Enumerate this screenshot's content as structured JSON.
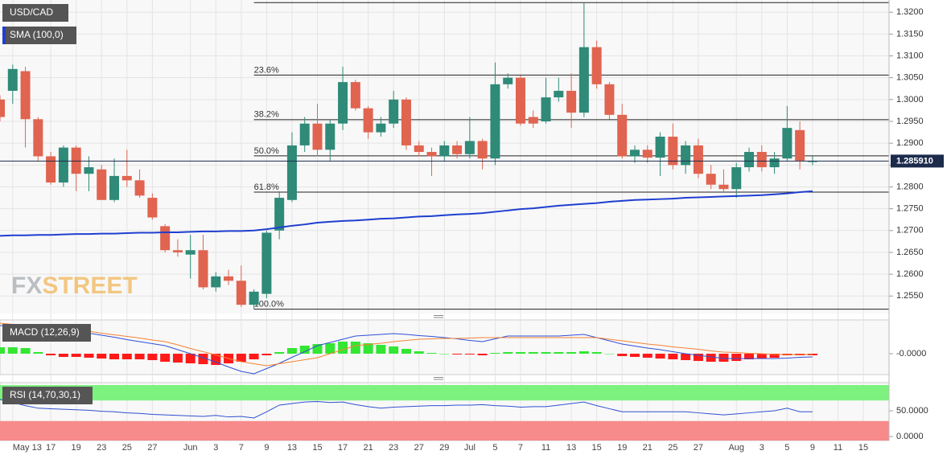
{
  "chart_data": [
    {
      "type": "candlestick",
      "title": "USD/CAD",
      "categories": [
        null,
        "May 13",
        null,
        null,
        "17",
        null,
        "19",
        null,
        "23",
        null,
        "25",
        null,
        "27",
        null,
        null,
        "Jun",
        null,
        "3",
        null,
        "7",
        null,
        "9",
        null,
        "13",
        null,
        "15",
        null,
        "17",
        null,
        "21",
        null,
        "23",
        null,
        "27",
        null,
        "29",
        null,
        "Jul",
        null,
        "5",
        null,
        "7",
        null,
        "11",
        null,
        "13",
        null,
        "15",
        null,
        "19",
        null,
        "21",
        null,
        "25",
        null,
        "27",
        null,
        null,
        "Aug",
        null,
        "3",
        null,
        "5",
        null,
        "9",
        null,
        "11",
        null,
        "15"
      ],
      "open": [
        1.3,
        1.302,
        1.3065,
        1.2955,
        1.287,
        1.281,
        1.289,
        1.283,
        1.284,
        1.277,
        1.2825,
        1.2815,
        1.2775,
        1.271,
        1.2655,
        1.2645,
        1.2655,
        1.257,
        1.2595,
        1.2585,
        1.253,
        1.2555,
        1.27,
        1.277,
        1.2895,
        1.2945,
        1.2885,
        1.2945,
        1.304,
        1.298,
        1.2925,
        1.2945,
        1.3,
        1.2895,
        1.288,
        1.287,
        1.2895,
        1.2875,
        1.2905,
        1.2865,
        1.3035,
        1.305,
        1.296,
        1.295,
        1.3005,
        1.302,
        1.297,
        1.312,
        1.3035,
        1.2965,
        1.287,
        1.2885,
        1.2867,
        1.2915,
        1.285,
        1.2895,
        1.283,
        1.2805,
        1.2795,
        1.2845,
        1.288,
        1.2845,
        1.2865,
        1.293,
        1.2857,
        null,
        null,
        null,
        null
      ],
      "high": [
        1.301,
        1.308,
        1.3075,
        1.296,
        1.288,
        1.2895,
        1.2895,
        1.287,
        1.285,
        1.2865,
        1.2885,
        1.284,
        1.2785,
        1.2715,
        1.268,
        1.269,
        1.269,
        1.2605,
        1.261,
        1.262,
        1.2565,
        1.27,
        1.279,
        1.2925,
        1.296,
        1.299,
        1.2955,
        1.3075,
        1.3045,
        1.2985,
        1.296,
        1.302,
        1.3005,
        1.2905,
        1.289,
        1.2905,
        1.2905,
        1.296,
        1.291,
        1.3085,
        1.306,
        1.3055,
        1.2975,
        1.305,
        1.305,
        1.306,
        1.3222,
        1.3135,
        1.304,
        1.299,
        1.2895,
        1.2895,
        1.2925,
        1.2945,
        1.2905,
        1.291,
        1.285,
        1.284,
        1.2855,
        1.289,
        1.2895,
        1.288,
        1.2985,
        1.295,
        1.287,
        null,
        null,
        null,
        null
      ],
      "low": [
        1.295,
        1.299,
        1.289,
        1.286,
        1.2805,
        1.28,
        1.279,
        1.279,
        1.277,
        1.2765,
        1.28,
        1.2775,
        1.2725,
        1.265,
        1.264,
        1.259,
        1.2565,
        1.256,
        1.2575,
        1.2525,
        1.252,
        1.2545,
        1.268,
        1.2765,
        1.288,
        1.287,
        1.286,
        1.293,
        1.2975,
        1.291,
        1.2915,
        1.2935,
        1.2885,
        1.287,
        1.2825,
        1.286,
        1.2865,
        1.2865,
        1.284,
        1.285,
        1.3025,
        1.294,
        1.2935,
        1.2945,
        1.2995,
        1.2935,
        1.296,
        1.3025,
        1.2955,
        1.2865,
        1.2855,
        1.2855,
        1.2825,
        1.284,
        1.283,
        1.282,
        1.2795,
        1.279,
        1.2775,
        1.2835,
        1.2835,
        1.283,
        1.286,
        1.284,
        1.285,
        null,
        null,
        null,
        null
      ],
      "close": [
        1.296,
        1.307,
        1.2955,
        1.287,
        1.281,
        1.289,
        1.283,
        1.2845,
        1.277,
        1.2825,
        1.2815,
        1.278,
        1.273,
        1.2655,
        1.265,
        1.2655,
        1.257,
        1.2595,
        1.2585,
        1.253,
        1.256,
        1.2695,
        1.2775,
        1.2895,
        1.2945,
        1.2885,
        1.2945,
        1.304,
        1.298,
        1.2925,
        1.2945,
        1.3,
        1.2895,
        1.288,
        1.287,
        1.2895,
        1.2875,
        1.2905,
        1.2865,
        1.3035,
        1.305,
        1.2945,
        1.2945,
        1.3005,
        1.302,
        1.297,
        1.312,
        1.3035,
        1.2965,
        1.287,
        1.2885,
        1.2867,
        1.2915,
        1.285,
        1.2895,
        1.283,
        1.2805,
        1.2795,
        1.2845,
        1.288,
        1.2845,
        1.2865,
        1.2935,
        1.286,
        1.28591,
        null,
        null,
        null,
        null
      ],
      "up_color": "#2f8a78",
      "down_color": "#e06450",
      "ylim": [
        1.251,
        1.3228
      ],
      "yticks": [
        {
          "value": 1.32,
          "label": "1.3200"
        },
        {
          "value": 1.315,
          "label": "1.3150"
        },
        {
          "value": 1.31,
          "label": "1.3100"
        },
        {
          "value": 1.305,
          "label": "1.3050"
        },
        {
          "value": 1.3,
          "label": "1.3000"
        },
        {
          "value": 1.295,
          "label": "1.2950"
        },
        {
          "value": 1.29,
          "label": "1.2900"
        },
        {
          "value": 1.285,
          "label": "1.2850"
        },
        {
          "value": 1.28,
          "label": "1.2800"
        },
        {
          "value": 1.275,
          "label": "1.2750"
        },
        {
          "value": 1.27,
          "label": "1.2700"
        },
        {
          "value": 1.265,
          "label": "1.2650"
        },
        {
          "value": 1.26,
          "label": "1.2600"
        },
        {
          "value": 1.255,
          "label": "1.2550"
        }
      ],
      "grid": true,
      "last_price": {
        "value": 1.28591,
        "label": "1.285910"
      },
      "overlays": [
        {
          "name": "SMA (100,0)",
          "color": "#1f3fd0",
          "values": [
            1.2688,
            1.2689,
            1.2689,
            1.269,
            1.269,
            1.2691,
            1.2692,
            1.2692,
            1.2693,
            1.2693,
            1.2694,
            1.2695,
            1.2695,
            1.2696,
            1.2696,
            1.2697,
            1.2698,
            1.2698,
            1.2699,
            1.2699,
            1.27,
            1.2703,
            1.2707,
            1.2711,
            1.2714,
            1.2718,
            1.272,
            1.2722,
            1.2723,
            1.2725,
            1.2727,
            1.2728,
            1.273,
            1.2732,
            1.2733,
            1.2735,
            1.2737,
            1.2738,
            1.274,
            1.2743,
            1.2746,
            1.2749,
            1.2751,
            1.2754,
            1.2757,
            1.2759,
            1.2761,
            1.2763,
            1.2766,
            1.2768,
            1.277,
            1.2771,
            1.2772,
            1.2773,
            1.2775,
            1.2776,
            1.2777,
            1.2778,
            1.2779,
            1.278,
            1.2781,
            1.2783,
            1.2785,
            1.2788,
            1.279,
            null,
            null,
            null,
            null
          ]
        }
      ],
      "fib_levels": [
        1.3222,
        1.3056,
        1.2954,
        1.2871,
        1.2788,
        1.252
      ],
      "fib_labels": [
        null,
        "23.6%",
        "38.2%",
        "50.0%",
        "61.8%",
        "100.0%"
      ],
      "watermark": [
        "FX",
        "STREET"
      ]
    },
    {
      "type": "macd",
      "title": "MACD (12,26,9)",
      "ylim": [
        -0.0052,
        0.0084
      ],
      "yticks": [
        {
          "value": 0,
          "label": "-0.0000"
        }
      ],
      "histogram": {
        "up_color": "#33e633",
        "down_color": "#ff1a1a",
        "values": [
          0.0016,
          0.0016,
          0.0014,
          0.0004,
          -0.0004,
          -0.0008,
          -0.0008,
          -0.001,
          -0.0012,
          -0.0014,
          -0.0014,
          -0.0014,
          -0.0016,
          -0.002,
          -0.0022,
          -0.0024,
          -0.0026,
          -0.0028,
          -0.0024,
          -0.002,
          -0.0014,
          -0.0004,
          0.0004,
          0.0014,
          0.002,
          0.0024,
          0.0026,
          0.003,
          0.003,
          0.0026,
          0.0022,
          0.0018,
          0.0012,
          0.0006,
          0.0002,
          0.0,
          -0.0002,
          -0.0002,
          -0.0004,
          0.0002,
          0.0004,
          0.0004,
          0.0004,
          0.0004,
          0.0004,
          0.0004,
          0.0006,
          0.0004,
          0.0,
          -0.0006,
          -0.0008,
          -0.001,
          -0.0012,
          -0.0014,
          -0.0016,
          -0.0018,
          -0.002,
          -0.002,
          -0.0018,
          -0.0014,
          -0.0012,
          -0.001,
          -0.0004,
          -0.0004,
          -0.0004,
          null,
          null,
          null,
          null
        ]
      },
      "lines": [
        {
          "color": "#2f4fd6",
          "values": [
            0.007,
            0.0068,
            0.0065,
            0.0063,
            0.0061,
            0.0058,
            0.0056,
            0.0051,
            0.0046,
            0.0041,
            0.0035,
            0.003,
            0.0025,
            0.002,
            0.001,
            0.0,
            -0.001,
            -0.0021,
            -0.0033,
            -0.0044,
            -0.005,
            -0.0037,
            -0.0024,
            -0.0009,
            0.0005,
            0.002,
            0.0028,
            0.0036,
            0.0044,
            0.0046,
            0.0048,
            0.005,
            0.0048,
            0.0045,
            0.0043,
            0.004,
            0.0037,
            0.0033,
            0.003,
            0.0037,
            0.0044,
            0.0044,
            0.0044,
            0.0044,
            0.0044,
            0.0046,
            0.0048,
            0.004,
            0.0032,
            0.0024,
            0.0019,
            0.0014,
            0.001,
            0.0005,
            0.0,
            -0.0004,
            -0.0008,
            -0.0012,
            -0.0012,
            -0.0012,
            -0.0012,
            -0.0012,
            -0.0011,
            -0.0009,
            -0.0008,
            null,
            null,
            null,
            null
          ]
        },
        {
          "color": "#f58232",
          "values": [
            0.0076,
            0.0073,
            0.0071,
            0.0068,
            0.0065,
            0.0063,
            0.006,
            0.0056,
            0.0051,
            0.0047,
            0.0043,
            0.0039,
            0.0034,
            0.003,
            0.0022,
            0.0013,
            0.0005,
            -0.0003,
            -0.0012,
            -0.002,
            -0.0025,
            -0.003,
            -0.0025,
            -0.002,
            -0.0015,
            -0.001,
            0.0,
            0.001,
            0.002,
            0.0023,
            0.0026,
            0.003,
            0.0033,
            0.0036,
            0.0037,
            0.0038,
            0.0038,
            0.0039,
            0.004,
            0.004,
            0.004,
            0.004,
            0.004,
            0.004,
            0.004,
            0.004,
            0.004,
            0.004,
            0.0036,
            0.0032,
            0.0028,
            0.0024,
            0.0021,
            0.0017,
            0.0014,
            0.0011,
            0.0007,
            0.0004,
            0.0003,
            0.0001,
            0.0,
            -0.0002,
            -0.0002,
            -0.0002,
            -0.0002,
            null,
            null,
            null,
            null
          ]
        }
      ]
    },
    {
      "type": "rsi",
      "title": "RSI (14,70,30,1)",
      "ylim": [
        -7.8,
        100
      ],
      "yticks": [
        {
          "value": 50,
          "label": "50.0000"
        },
        {
          "value": 0,
          "label": "0.0000"
        }
      ],
      "overbought": 70,
      "oversold": 30,
      "overbought_color": "#7ef27e",
      "oversold_color": "#f78a8a",
      "color": "#3050d0",
      "values": [
        72,
        66,
        60,
        55,
        54,
        53,
        52,
        51,
        49,
        48,
        46,
        45,
        43,
        42,
        41,
        40,
        39,
        41,
        38,
        39,
        36,
        48,
        61,
        64,
        67,
        68,
        66,
        67,
        62,
        58,
        55,
        57,
        58,
        59,
        60,
        60,
        61,
        61,
        62,
        60,
        59,
        57,
        58,
        58,
        61,
        64,
        67,
        60,
        54,
        48,
        48,
        48,
        48,
        48,
        48,
        46,
        44,
        42,
        44,
        46,
        48,
        50,
        55,
        48,
        48,
        null,
        null,
        null,
        null
      ]
    }
  ]
}
